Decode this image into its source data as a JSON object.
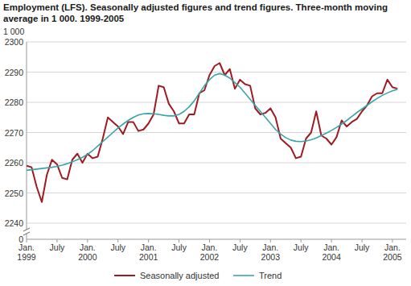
{
  "chart_data": {
    "type": "line",
    "title": "Employment (LFS). Seasonally adjusted figures and trend figures. Three-month moving average in 1 000. 1999-2005",
    "y_label": "1 000",
    "categories": [
      "Jan. 1999",
      null,
      null,
      null,
      null,
      null,
      "July",
      null,
      null,
      null,
      null,
      null,
      "Jan. 2000",
      null,
      null,
      null,
      null,
      null,
      "July",
      null,
      null,
      null,
      null,
      null,
      "Jan. 2001",
      null,
      null,
      null,
      null,
      null,
      "July",
      null,
      null,
      null,
      null,
      null,
      "Jan. 2002",
      null,
      null,
      null,
      null,
      null,
      "July",
      null,
      null,
      null,
      null,
      null,
      "Jan. 2003",
      null,
      null,
      null,
      null,
      null,
      "July",
      null,
      null,
      null,
      null,
      null,
      "Jan. 2004",
      null,
      null,
      null,
      null,
      null,
      "July",
      null,
      null,
      null,
      null,
      null,
      "Jan. 2005",
      null
    ],
    "series": [
      {
        "name": "Seasonally adjusted",
        "color": "#9e1b22",
        "values": [
          2259,
          2258.5,
          2252,
          2247,
          2256,
          2261,
          2259.5,
          2255,
          2254.5,
          2261,
          2263,
          2260,
          2263,
          2261.5,
          2262,
          2268,
          2275,
          2273.5,
          2272,
          2269.5,
          2273.5,
          2273.5,
          2270.5,
          2271,
          2273,
          2276,
          2285.5,
          2285,
          2279.5,
          2277,
          2273,
          2273,
          2276,
          2276,
          2283,
          2284,
          2289,
          2292,
          2293,
          2289,
          2291,
          2284.5,
          2287.5,
          2286,
          2285.5,
          2278,
          2276,
          2276.5,
          2278,
          2275,
          2268,
          2266.5,
          2265,
          2261.5,
          2262,
          2268,
          2270,
          2277,
          2269,
          2268,
          2266,
          2268.5,
          2274,
          2272,
          2273.5,
          2274.5,
          2277,
          2279,
          2282,
          2283,
          2283,
          2287.5,
          2285,
          2284.5
        ]
      },
      {
        "name": "Trend",
        "color": "#3aa5a8",
        "values": [
          2257.5,
          2257.7,
          2257.9,
          2258.1,
          2258.3,
          2258.5,
          2258.8,
          2259.2,
          2259.7,
          2260.3,
          2261,
          2261.8,
          2262.8,
          2264,
          2265.5,
          2267,
          2268.5,
          2270,
          2271.5,
          2272.8,
          2274,
          2275,
          2275.8,
          2276.2,
          2276.3,
          2276.2,
          2276,
          2275.7,
          2275.5,
          2275.5,
          2276,
          2277,
          2278.5,
          2280.5,
          2283,
          2285.5,
          2287.5,
          2289,
          2289.5,
          2289,
          2288,
          2286.5,
          2285,
          2283,
          2281,
          2279,
          2277,
          2275,
          2273,
          2271,
          2269.5,
          2268.3,
          2267.5,
          2267.1,
          2267,
          2267.2,
          2267.6,
          2268.2,
          2269,
          2269.8,
          2270.7,
          2271.7,
          2272.8,
          2274,
          2275.3,
          2276.6,
          2277.8,
          2279,
          2280.2,
          2281.3,
          2282.3,
          2283.1,
          2283.8,
          2284.3
        ]
      }
    ],
    "ylim": [
      0,
      2300
    ],
    "yticks": [
      0,
      2240,
      2250,
      2260,
      2270,
      2280,
      2290,
      2300
    ],
    "grid": true,
    "legend": "bottom"
  }
}
